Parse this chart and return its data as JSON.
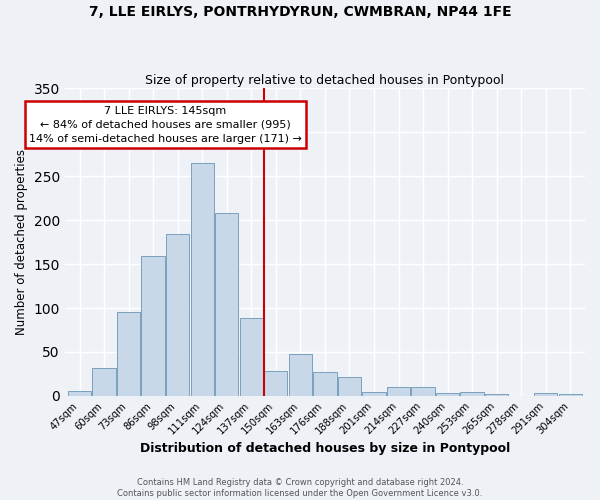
{
  "title": "7, LLE EIRLYS, PONTRHYDYRUN, CWMBRAN, NP44 1FE",
  "subtitle": "Size of property relative to detached houses in Pontypool",
  "xlabel": "Distribution of detached houses by size in Pontypool",
  "ylabel": "Number of detached properties",
  "bar_labels": [
    "47sqm",
    "60sqm",
    "73sqm",
    "86sqm",
    "98sqm",
    "111sqm",
    "124sqm",
    "137sqm",
    "150sqm",
    "163sqm",
    "176sqm",
    "188sqm",
    "201sqm",
    "214sqm",
    "227sqm",
    "240sqm",
    "253sqm",
    "265sqm",
    "278sqm",
    "291sqm",
    "304sqm"
  ],
  "bar_values": [
    6,
    32,
    95,
    159,
    184,
    265,
    208,
    89,
    28,
    48,
    27,
    22,
    5,
    10,
    10,
    3,
    4,
    2,
    0,
    3,
    2
  ],
  "bar_color": "#c8d8e8",
  "bar_edgecolor": "#7aa0bc",
  "vline_color": "#cc0000",
  "annotation_title": "7 LLE EIRLYS: 145sqm",
  "annotation_line1": "← 84% of detached houses are smaller (995)",
  "annotation_line2": "14% of semi-detached houses are larger (171) →",
  "annotation_box_edgecolor": "#cc0000",
  "ylim": [
    0,
    350
  ],
  "yticks": [
    0,
    50,
    100,
    150,
    200,
    250,
    300,
    350
  ],
  "footer1": "Contains HM Land Registry data © Crown copyright and database right 2024.",
  "footer2": "Contains public sector information licensed under the Open Government Licence v3.0.",
  "background_color": "#eef2f7",
  "grid_color": "#ffffff"
}
